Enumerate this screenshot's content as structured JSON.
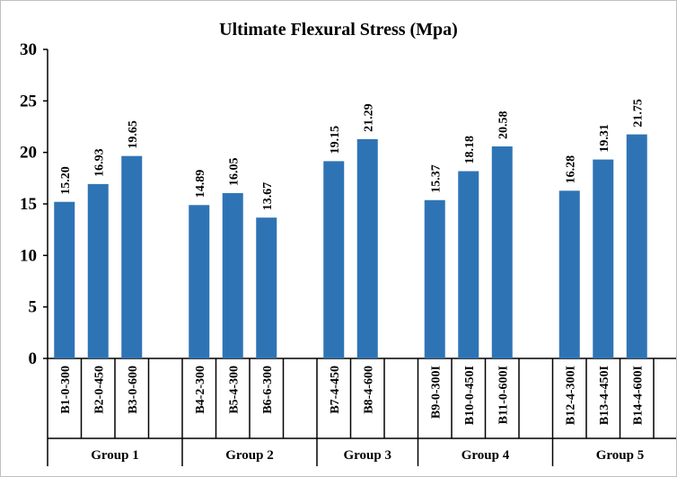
{
  "chart_data": {
    "type": "bar",
    "title": "Ultimate Flexural Stress (Mpa)",
    "xlabel": "",
    "ylabel": "",
    "ylim": [
      0,
      30
    ],
    "yticks": [
      0,
      5,
      10,
      15,
      20,
      25,
      30
    ],
    "grid": false,
    "bar_color": "#2e74b5",
    "value_format": "2 decimals",
    "groups": [
      {
        "label": "Group 1",
        "categories": [
          "B1-0-300",
          "B2-0-450",
          "B3-0-600"
        ],
        "values": [
          15.2,
          16.93,
          19.65
        ]
      },
      {
        "label": "Group 2",
        "categories": [
          "B4-2-300",
          "B5-4-300",
          "B6-6-300"
        ],
        "values": [
          14.89,
          16.05,
          13.67
        ]
      },
      {
        "label": "Group 3",
        "categories": [
          "B7-4-450",
          "B8-4-600"
        ],
        "values": [
          19.15,
          21.29
        ]
      },
      {
        "label": "Group 4",
        "categories": [
          "B9-0-300I",
          "B10-0-450I",
          "B11-0-600I"
        ],
        "values": [
          15.37,
          18.18,
          20.58
        ]
      },
      {
        "label": "Group 5",
        "categories": [
          "B12-4-300I",
          "B13-4-450I",
          "B14-4-600I"
        ],
        "values": [
          16.28,
          19.31,
          21.75
        ]
      }
    ]
  }
}
